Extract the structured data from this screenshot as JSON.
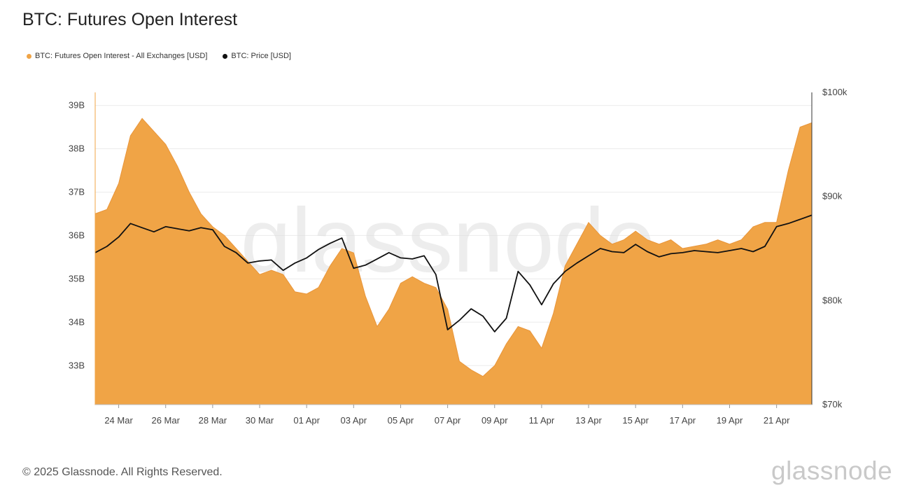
{
  "header": {
    "title": "BTC: Futures Open Interest"
  },
  "legend": [
    {
      "label": "BTC: Futures Open Interest - All Exchanges [USD]",
      "color": "#f0a446"
    },
    {
      "label": "BTC: Price [USD]",
      "color": "#111111"
    }
  ],
  "footer": {
    "copyright": "© 2025 Glassnode. All Rights Reserved.",
    "brand": "glassnode"
  },
  "chart_data": {
    "type": "area",
    "title": "BTC: Futures Open Interest",
    "x_range": [
      "2025-03-23",
      "2025-04-22"
    ],
    "x_ticks": [
      "24 Mar",
      "26 Mar",
      "28 Mar",
      "30 Mar",
      "01 Apr",
      "03 Apr",
      "05 Apr",
      "07 Apr",
      "09 Apr",
      "11 Apr",
      "13 Apr",
      "15 Apr",
      "17 Apr",
      "19 Apr",
      "21 Apr"
    ],
    "y_left": {
      "ticks": [
        "33B",
        "34B",
        "35B",
        "36B",
        "37B",
        "38B",
        "39B"
      ],
      "range": [
        32.1,
        39.3
      ]
    },
    "y_right": {
      "ticks": [
        "$70k",
        "$80k",
        "$90k",
        "$100k"
      ],
      "range": [
        70000,
        100000
      ]
    },
    "series": [
      {
        "name": "BTC: Futures Open Interest - All Exchanges [USD]",
        "axis": "left",
        "color": "#f0a446",
        "unit": "B USD",
        "x": [
          "2025-03-23",
          "2025-03-23 12:00",
          "2025-03-24",
          "2025-03-24 12:00",
          "2025-03-25",
          "2025-03-25 12:00",
          "2025-03-26",
          "2025-03-26 12:00",
          "2025-03-27",
          "2025-03-27 12:00",
          "2025-03-28",
          "2025-03-28 12:00",
          "2025-03-29",
          "2025-03-29 12:00",
          "2025-03-30",
          "2025-03-30 12:00",
          "2025-03-31",
          "2025-03-31 12:00",
          "2025-04-01",
          "2025-04-01 12:00",
          "2025-04-02",
          "2025-04-02 12:00",
          "2025-04-03",
          "2025-04-03 12:00",
          "2025-04-04",
          "2025-04-04 12:00",
          "2025-04-05",
          "2025-04-05 12:00",
          "2025-04-06",
          "2025-04-06 12:00",
          "2025-04-07",
          "2025-04-07 12:00",
          "2025-04-08",
          "2025-04-08 12:00",
          "2025-04-09",
          "2025-04-09 12:00",
          "2025-04-10",
          "2025-04-10 12:00",
          "2025-04-11",
          "2025-04-11 12:00",
          "2025-04-12",
          "2025-04-12 12:00",
          "2025-04-13",
          "2025-04-13 12:00",
          "2025-04-14",
          "2025-04-14 12:00",
          "2025-04-15",
          "2025-04-15 12:00",
          "2025-04-16",
          "2025-04-16 12:00",
          "2025-04-17",
          "2025-04-17 12:00",
          "2025-04-18",
          "2025-04-18 12:00",
          "2025-04-19",
          "2025-04-19 12:00",
          "2025-04-20",
          "2025-04-20 12:00",
          "2025-04-21",
          "2025-04-21 12:00",
          "2025-04-22",
          "2025-04-22 12:00"
        ],
        "values": [
          36.5,
          36.6,
          37.2,
          38.3,
          38.7,
          38.4,
          38.1,
          37.6,
          37.0,
          36.5,
          36.2,
          36.0,
          35.7,
          35.4,
          35.1,
          35.2,
          35.1,
          34.7,
          34.65,
          34.8,
          35.3,
          35.7,
          35.6,
          34.6,
          33.9,
          34.3,
          34.9,
          35.05,
          34.9,
          34.8,
          34.3,
          33.1,
          32.9,
          32.75,
          33.0,
          33.5,
          33.9,
          33.8,
          33.4,
          34.2,
          35.3,
          35.8,
          36.3,
          36.0,
          35.8,
          35.9,
          36.1,
          35.9,
          35.8,
          35.9,
          35.7,
          35.75,
          35.8,
          35.9,
          35.8,
          35.9,
          36.2,
          36.3,
          36.3,
          37.5,
          38.5,
          38.6
        ]
      },
      {
        "name": "BTC: Price [USD]",
        "axis": "right",
        "color": "#111111",
        "unit": "USD",
        "x": [
          "2025-03-23",
          "2025-03-23 12:00",
          "2025-03-24",
          "2025-03-24 12:00",
          "2025-03-25",
          "2025-03-25 12:00",
          "2025-03-26",
          "2025-03-26 12:00",
          "2025-03-27",
          "2025-03-27 12:00",
          "2025-03-28",
          "2025-03-28 12:00",
          "2025-03-29",
          "2025-03-29 12:00",
          "2025-03-30",
          "2025-03-30 12:00",
          "2025-03-31",
          "2025-03-31 12:00",
          "2025-04-01",
          "2025-04-01 12:00",
          "2025-04-02",
          "2025-04-02 12:00",
          "2025-04-03",
          "2025-04-03 12:00",
          "2025-04-04",
          "2025-04-04 12:00",
          "2025-04-05",
          "2025-04-05 12:00",
          "2025-04-06",
          "2025-04-06 12:00",
          "2025-04-07",
          "2025-04-07 12:00",
          "2025-04-08",
          "2025-04-08 12:00",
          "2025-04-09",
          "2025-04-09 12:00",
          "2025-04-10",
          "2025-04-10 12:00",
          "2025-04-11",
          "2025-04-11 12:00",
          "2025-04-12",
          "2025-04-12 12:00",
          "2025-04-13",
          "2025-04-13 12:00",
          "2025-04-14",
          "2025-04-14 12:00",
          "2025-04-15",
          "2025-04-15 12:00",
          "2025-04-16",
          "2025-04-16 12:00",
          "2025-04-17",
          "2025-04-17 12:00",
          "2025-04-18",
          "2025-04-18 12:00",
          "2025-04-19",
          "2025-04-19 12:00",
          "2025-04-20",
          "2025-04-20 12:00",
          "2025-04-21",
          "2025-04-21 12:00",
          "2025-04-22",
          "2025-04-22 12:00"
        ],
        "values": [
          84600,
          85200,
          86100,
          87400,
          87000,
          86600,
          87100,
          86900,
          86700,
          87000,
          86800,
          85200,
          84600,
          83600,
          83800,
          83900,
          82900,
          83600,
          84100,
          84900,
          85500,
          86000,
          83100,
          83400,
          84000,
          84600,
          84100,
          84000,
          84300,
          82500,
          77200,
          78100,
          79200,
          78500,
          77000,
          78300,
          82800,
          81500,
          79600,
          81600,
          82800,
          83600,
          84300,
          85000,
          84700,
          84600,
          85400,
          84700,
          84200,
          84500,
          84600,
          84800,
          84700,
          84600,
          84800,
          85000,
          84700,
          85200,
          87100,
          87400,
          87800,
          88200
        ]
      }
    ]
  }
}
